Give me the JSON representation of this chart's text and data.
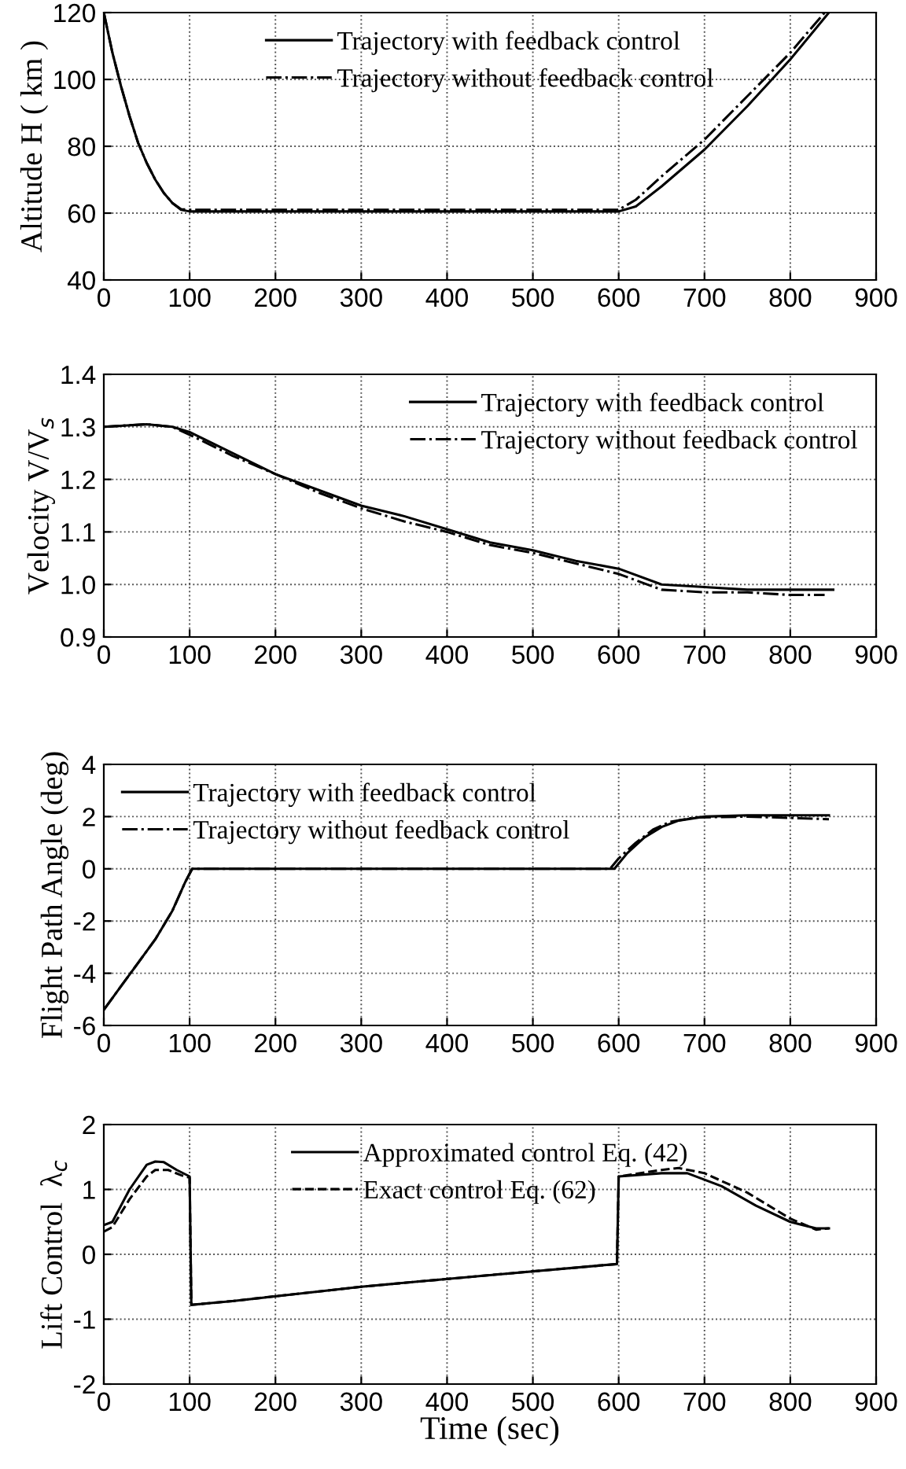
{
  "chart_data": [
    {
      "type": "line",
      "ylabel": "Altitude H ( km )",
      "xlim": [
        0,
        900
      ],
      "ylim": [
        40,
        120
      ],
      "xticks": [
        0,
        100,
        200,
        300,
        400,
        500,
        600,
        700,
        800,
        900
      ],
      "yticks": [
        40,
        60,
        80,
        100,
        120
      ],
      "grid": true,
      "legend": "top",
      "series": [
        {
          "name": "Trajectory with feedback control",
          "color": "#000000",
          "line_style": "solid",
          "x": [
            0,
            10,
            20,
            30,
            40,
            50,
            60,
            70,
            80,
            90,
            100,
            600,
            620,
            650,
            700,
            750,
            800,
            845
          ],
          "values": [
            120,
            108,
            98,
            89,
            81,
            75,
            70,
            66,
            63,
            61,
            60.5,
            60.5,
            62,
            68,
            79,
            92,
            106,
            120
          ]
        },
        {
          "name": "Trajectory without feedback control",
          "color": "#000000",
          "line_style": "dashdot",
          "x": [
            0,
            10,
            20,
            30,
            40,
            50,
            60,
            70,
            80,
            90,
            100,
            600,
            620,
            650,
            700,
            750,
            800,
            840
          ],
          "values": [
            120,
            108,
            98,
            89,
            81,
            75,
            70,
            66,
            63,
            61.2,
            61,
            61,
            64,
            71,
            82,
            95,
            108,
            120
          ]
        }
      ]
    },
    {
      "type": "line",
      "ylabel": "Velocity V/V$_{s}$",
      "xlim": [
        0,
        900
      ],
      "ylim": [
        0.9,
        1.4
      ],
      "xticks": [
        0,
        100,
        200,
        300,
        400,
        500,
        600,
        700,
        800,
        900
      ],
      "yticks": [
        {
          "value": 0.9,
          "label": "0.9"
        },
        {
          "value": 1.0,
          "label": "1.0"
        },
        {
          "value": 1.1,
          "label": "1.1"
        },
        {
          "value": 1.2,
          "label": "1.2"
        },
        {
          "value": 1.3,
          "label": "1.3"
        },
        {
          "value": 1.4,
          "label": "1.4"
        }
      ],
      "grid": true,
      "legend": "top right",
      "series": [
        {
          "name": "Trajectory with feedback control",
          "color": "#000000",
          "line_style": "solid",
          "x": [
            0,
            50,
            80,
            100,
            150,
            200,
            250,
            300,
            350,
            400,
            450,
            500,
            550,
            600,
            650,
            700,
            750,
            800,
            850
          ],
          "values": [
            1.3,
            1.305,
            1.3,
            1.29,
            1.25,
            1.21,
            1.18,
            1.15,
            1.13,
            1.105,
            1.08,
            1.065,
            1.045,
            1.03,
            1.0,
            0.995,
            0.99,
            0.99,
            0.99
          ]
        },
        {
          "name": "Trajectory without feedback control",
          "color": "#000000",
          "line_style": "dashdot",
          "x": [
            0,
            50,
            80,
            100,
            150,
            200,
            250,
            300,
            350,
            400,
            450,
            500,
            550,
            600,
            650,
            700,
            750,
            800,
            840
          ],
          "values": [
            1.3,
            1.305,
            1.3,
            1.285,
            1.245,
            1.21,
            1.175,
            1.145,
            1.12,
            1.1,
            1.075,
            1.06,
            1.04,
            1.02,
            0.99,
            0.985,
            0.985,
            0.98,
            0.98
          ]
        }
      ]
    },
    {
      "type": "line",
      "ylabel": "Flight Path Angle (deg)",
      "xlim": [
        0,
        900
      ],
      "ylim": [
        -6,
        4
      ],
      "xticks": [
        0,
        100,
        200,
        300,
        400,
        500,
        600,
        700,
        800,
        900
      ],
      "yticks": [
        -6,
        -4,
        -2,
        0,
        2,
        4
      ],
      "grid": true,
      "legend": "top left",
      "series": [
        {
          "name": "Trajectory with feedback control",
          "color": "#000000",
          "line_style": "solid",
          "x": [
            0,
            20,
            40,
            60,
            80,
            95,
            103,
            595,
            610,
            630,
            650,
            670,
            700,
            750,
            845
          ],
          "values": [
            -5.4,
            -4.5,
            -3.6,
            -2.7,
            -1.6,
            -0.5,
            0,
            0,
            0.6,
            1.2,
            1.6,
            1.85,
            2.0,
            2.05,
            2.05
          ]
        },
        {
          "name": "Trajectory without feedback control",
          "color": "#000000",
          "line_style": "dashdot",
          "x": [
            0,
            20,
            40,
            60,
            80,
            95,
            103,
            590,
            600,
            620,
            640,
            660,
            690,
            750,
            800,
            845
          ],
          "values": [
            -5.4,
            -4.5,
            -3.6,
            -2.7,
            -1.6,
            -0.5,
            0,
            0,
            0.4,
            1.0,
            1.5,
            1.8,
            1.97,
            2.0,
            1.95,
            1.9
          ]
        }
      ]
    },
    {
      "type": "line",
      "ylabel": "Lift Control  λ$_{c}$",
      "xlabel": "Time (sec)",
      "xlim": [
        0,
        900
      ],
      "ylim": [
        -2,
        2
      ],
      "xticks": [
        0,
        100,
        200,
        300,
        400,
        500,
        600,
        700,
        800,
        900
      ],
      "yticks": [
        -2,
        -1,
        0,
        1,
        2
      ],
      "grid": true,
      "legend": "top",
      "series": [
        {
          "name": "Approximated control Eq. (42)",
          "color": "#000000",
          "line_style": "solid",
          "x": [
            0,
            10,
            30,
            50,
            60,
            70,
            85,
            100,
            102,
            150,
            300,
            450,
            598,
            600,
            650,
            680,
            720,
            760,
            800,
            830,
            845
          ],
          "values": [
            0.45,
            0.5,
            1.0,
            1.38,
            1.43,
            1.42,
            1.3,
            1.2,
            -0.78,
            -0.72,
            -0.5,
            -0.32,
            -0.15,
            1.2,
            1.25,
            1.25,
            1.05,
            0.75,
            0.5,
            0.4,
            0.4
          ]
        },
        {
          "name": "Exact control Eq. (62)",
          "color": "#000000",
          "line_style": "dashed",
          "x": [
            0,
            10,
            30,
            50,
            60,
            75,
            90,
            100,
            102,
            150,
            300,
            450,
            598,
            600,
            650,
            670,
            700,
            750,
            800,
            830,
            845
          ],
          "values": [
            0.35,
            0.42,
            0.85,
            1.2,
            1.3,
            1.3,
            1.22,
            1.18,
            -0.78,
            -0.72,
            -0.5,
            -0.32,
            -0.15,
            1.2,
            1.3,
            1.33,
            1.25,
            0.95,
            0.55,
            0.38,
            0.4
          ]
        }
      ]
    }
  ]
}
